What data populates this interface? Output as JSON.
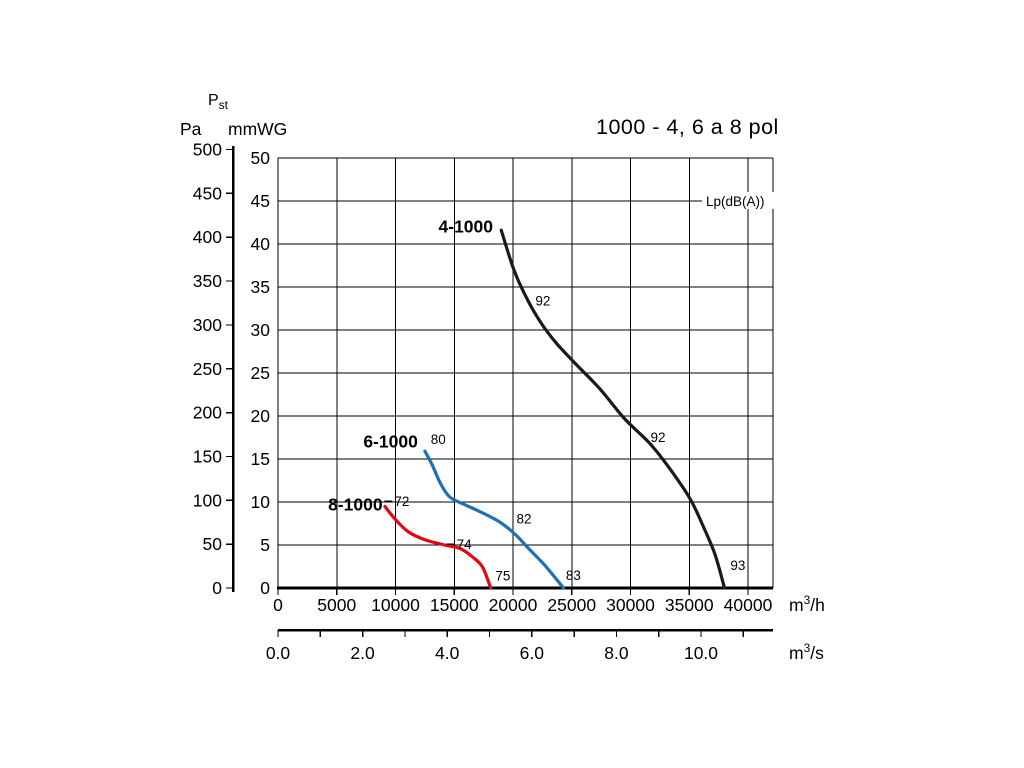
{
  "header": {
    "pst_base": "P",
    "pst_sub": "st"
  },
  "chart_data": {
    "type": "line",
    "title": "1000 - 4, 6 a 8 pol",
    "noise_label": "Lp(dB(A))",
    "grid": true,
    "point_units": [
      "m3/h",
      "Pa"
    ],
    "y_axes": [
      {
        "label": "Pa",
        "min": 0,
        "max": 500,
        "ticks": [
          500,
          450,
          400,
          350,
          300,
          250,
          200,
          150,
          100,
          50,
          0
        ]
      },
      {
        "label": "mmWG",
        "min": 0,
        "max": 50,
        "ticks": [
          50,
          45,
          40,
          35,
          30,
          25,
          20,
          15,
          10,
          5,
          0
        ]
      }
    ],
    "x_axes": [
      {
        "unit": {
          "base": "m",
          "sup": "3",
          "rest": "/h"
        },
        "min": 0,
        "max": 40000,
        "ticks": [
          0,
          5000,
          10000,
          15000,
          20000,
          25000,
          30000,
          35000,
          40000
        ]
      },
      {
        "unit": {
          "base": "m",
          "sup": "3",
          "rest": "/s"
        },
        "min": 0,
        "max": 10,
        "tick_values": [
          0,
          2,
          4,
          6,
          8,
          10
        ],
        "tick_labels": [
          "0.0",
          "2.0",
          "4.0",
          "6.0",
          "8.0",
          "10.0"
        ],
        "minor_tick_step": 1,
        "minor_tick_max": 11
      }
    ],
    "series": [
      {
        "name": "4-1000",
        "color": "#1a1a1a",
        "points": [
          [
            19000,
            408
          ],
          [
            20100,
            362
          ],
          [
            21300,
            327
          ],
          [
            22500,
            300
          ],
          [
            23700,
            279
          ],
          [
            25300,
            256
          ],
          [
            27400,
            227
          ],
          [
            29500,
            193
          ],
          [
            31700,
            164
          ],
          [
            33400,
            135
          ],
          [
            35100,
            101
          ],
          [
            36300,
            67
          ],
          [
            37200,
            38
          ],
          [
            38000,
            0
          ]
        ],
        "label_pos": {
          "x": 18300,
          "y": 412
        },
        "db_labels": [
          {
            "text": "92",
            "x": 21900,
            "y": 328
          },
          {
            "text": "92",
            "x": 31700,
            "y": 172
          },
          {
            "text": "93",
            "x": 38500,
            "y": 26
          }
        ]
      },
      {
        "name": "6-1000",
        "color": "#1d70b7",
        "points": [
          [
            12500,
            156
          ],
          [
            13100,
            141
          ],
          [
            13800,
            120
          ],
          [
            14600,
            104
          ],
          [
            15900,
            95
          ],
          [
            17200,
            87
          ],
          [
            18900,
            75
          ],
          [
            20200,
            61
          ],
          [
            21400,
            44
          ],
          [
            22700,
            26
          ],
          [
            24300,
            0
          ]
        ],
        "label_pos": {
          "x": 11900,
          "y": 167
        },
        "db_labels": [
          {
            "text": "80",
            "x": 13000,
            "y": 170
          },
          {
            "text": "82",
            "x": 20300,
            "y": 79
          },
          {
            "text": "83",
            "x": 24500,
            "y": 15
          }
        ]
      },
      {
        "name": "8-1000",
        "color": "#e30613",
        "points": [
          [
            9100,
            93
          ],
          [
            10000,
            78
          ],
          [
            11100,
            64
          ],
          [
            12500,
            55
          ],
          [
            14200,
            49
          ],
          [
            15500,
            45
          ],
          [
            16500,
            36
          ],
          [
            17400,
            24
          ],
          [
            18100,
            0
          ]
        ],
        "label_pos": {
          "x": 8900,
          "y": 95
        },
        "db_labels": [
          {
            "text": "72",
            "x": 9900,
            "y": 99,
            "leader": true
          },
          {
            "text": "74",
            "x": 15200,
            "y": 50,
            "leader": true
          },
          {
            "text": "75",
            "x": 18500,
            "y": 14
          }
        ]
      }
    ]
  }
}
